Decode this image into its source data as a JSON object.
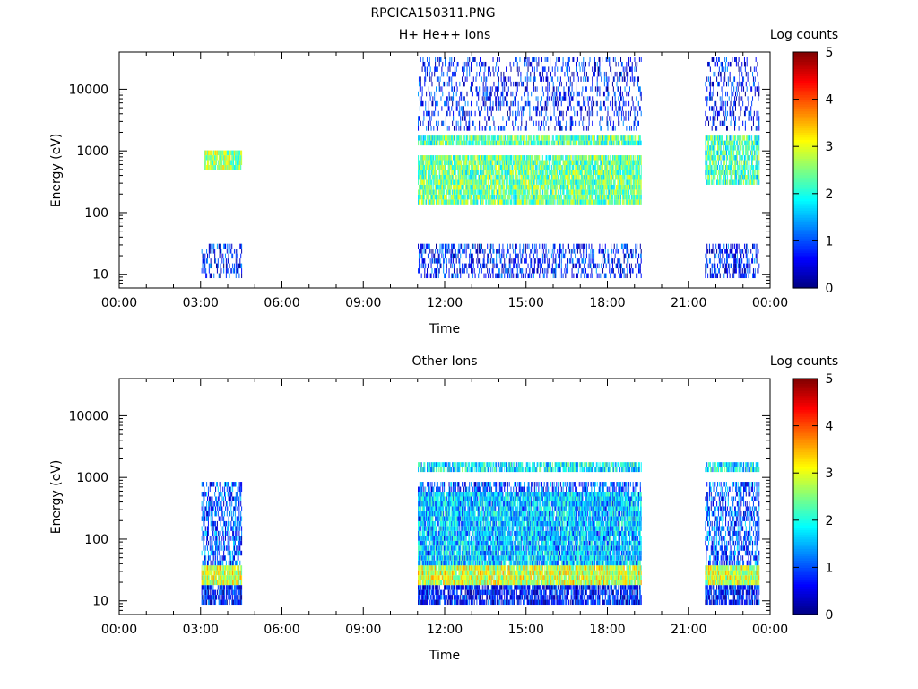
{
  "figure_title": "RPCICA150311.PNG",
  "chart_data": [
    {
      "type": "heatmap",
      "title": "H+ He++ Ions",
      "xlabel": "Time",
      "ylabel": "Energy (eV)",
      "colorbar_label": "Log counts",
      "x_ticks": [
        "00:00",
        "03:00",
        "06:00",
        "09:00",
        "12:00",
        "15:00",
        "18:00",
        "21:00",
        "00:00"
      ],
      "x_range_hours": [
        0,
        24
      ],
      "y_scale": "log",
      "y_range": [
        6,
        40000
      ],
      "y_ticks": [
        "10",
        "100",
        "1000",
        "10000"
      ],
      "colorbar_range": [
        0,
        5
      ],
      "colorbar_ticks": [
        "0",
        "1",
        "2",
        "3",
        "4",
        "5"
      ],
      "intervals_hours": [
        [
          3.0,
          4.5
        ],
        [
          11.0,
          19.25
        ],
        [
          21.6,
          23.6
        ]
      ],
      "bands": [
        {
          "e_lo": 450,
          "e_hi": 1000,
          "level": 2.6,
          "cover": 0.95,
          "start_h": 3.1,
          "end_h": 4.5
        },
        {
          "e_lo": 140,
          "e_hi": 900,
          "level": 2.4,
          "cover": 0.9,
          "start_h": 11.0,
          "end_h": 19.25
        },
        {
          "e_lo": 1200,
          "e_hi": 1900,
          "level": 2.3,
          "cover": 0.9,
          "start_h": 11.0,
          "end_h": 19.25
        },
        {
          "e_lo": 300,
          "e_hi": 1900,
          "level": 2.2,
          "cover": 0.8,
          "start_h": 21.6,
          "end_h": 23.6
        },
        {
          "e_lo": 2000,
          "e_hi": 35000,
          "level": 0.6,
          "cover": 0.3,
          "start_h": 11.0,
          "end_h": 23.6
        },
        {
          "e_lo": 8,
          "e_hi": 30,
          "level": 0.7,
          "cover": 0.4,
          "start_h": 3.0,
          "end_h": 23.6
        }
      ]
    },
    {
      "type": "heatmap",
      "title": "Other Ions",
      "xlabel": "Time",
      "ylabel": "Energy (eV)",
      "colorbar_label": "Log counts",
      "x_ticks": [
        "00:00",
        "03:00",
        "06:00",
        "09:00",
        "12:00",
        "15:00",
        "18:00",
        "21:00",
        "00:00"
      ],
      "x_range_hours": [
        0,
        24
      ],
      "y_scale": "log",
      "y_range": [
        6,
        40000
      ],
      "y_ticks": [
        "10",
        "100",
        "1000",
        "10000"
      ],
      "colorbar_range": [
        0,
        5
      ],
      "colorbar_ticks": [
        "0",
        "1",
        "2",
        "3",
        "4",
        "5"
      ],
      "intervals_hours": [
        [
          3.0,
          4.5
        ],
        [
          11.0,
          19.25
        ],
        [
          21.6,
          23.6
        ]
      ],
      "bands": [
        {
          "e_lo": 18,
          "e_hi": 35,
          "level": 2.9,
          "cover": 0.97,
          "start_h": 3.0,
          "end_h": 23.6
        },
        {
          "e_lo": 35,
          "e_hi": 600,
          "level": 1.6,
          "cover": 0.85,
          "start_h": 11.0,
          "end_h": 19.25
        },
        {
          "e_lo": 1200,
          "e_hi": 1900,
          "level": 1.8,
          "cover": 0.8,
          "start_h": 11.0,
          "end_h": 23.6
        },
        {
          "e_lo": 40,
          "e_hi": 900,
          "level": 1.0,
          "cover": 0.5,
          "start_h": 3.0,
          "end_h": 23.6
        },
        {
          "e_lo": 8,
          "e_hi": 18,
          "level": 0.6,
          "cover": 0.9,
          "start_h": 3.0,
          "end_h": 23.6
        }
      ]
    }
  ]
}
